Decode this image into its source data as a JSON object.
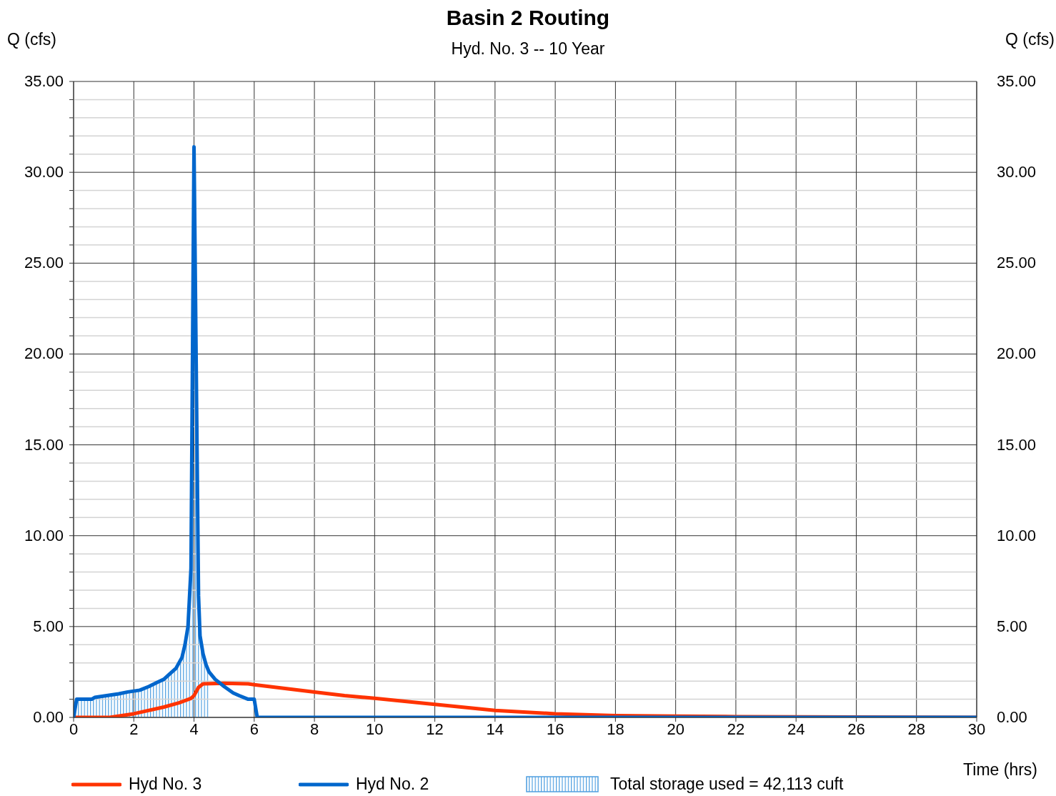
{
  "chart_data": {
    "type": "line",
    "title": "Basin 2 Routing",
    "subtitle": "Hyd. No. 3 -- 10 Year",
    "xlabel": "Time (hrs)",
    "ylabel": "Q (cfs)",
    "y2label": "Q (cfs)",
    "xlim": [
      0,
      30
    ],
    "xticks": [
      0,
      2,
      4,
      6,
      8,
      10,
      12,
      14,
      16,
      18,
      20,
      22,
      24,
      26,
      28,
      30
    ],
    "ylim": [
      0,
      35
    ],
    "yticks": [
      {
        "value": 0,
        "label": "0.00"
      },
      {
        "value": 1,
        "label": null
      },
      {
        "value": 2,
        "label": null
      },
      {
        "value": 3,
        "label": null
      },
      {
        "value": 4,
        "label": null
      },
      {
        "value": 5,
        "label": "5.00"
      },
      {
        "value": 6,
        "label": null
      },
      {
        "value": 7,
        "label": null
      },
      {
        "value": 8,
        "label": null
      },
      {
        "value": 9,
        "label": null
      },
      {
        "value": 10,
        "label": "10.00"
      },
      {
        "value": 11,
        "label": null
      },
      {
        "value": 12,
        "label": null
      },
      {
        "value": 13,
        "label": null
      },
      {
        "value": 14,
        "label": null
      },
      {
        "value": 15,
        "label": "15.00"
      },
      {
        "value": 16,
        "label": null
      },
      {
        "value": 17,
        "label": null
      },
      {
        "value": 18,
        "label": null
      },
      {
        "value": 19,
        "label": null
      },
      {
        "value": 20,
        "label": "20.00"
      },
      {
        "value": 21,
        "label": null
      },
      {
        "value": 22,
        "label": null
      },
      {
        "value": 23,
        "label": null
      },
      {
        "value": 24,
        "label": null
      },
      {
        "value": 25,
        "label": "25.00"
      },
      {
        "value": 26,
        "label": null
      },
      {
        "value": 27,
        "label": null
      },
      {
        "value": 28,
        "label": null
      },
      {
        "value": 29,
        "label": null
      },
      {
        "value": 30,
        "label": "30.00"
      },
      {
        "value": 31,
        "label": null
      },
      {
        "value": 32,
        "label": null
      },
      {
        "value": 33,
        "label": null
      },
      {
        "value": 34,
        "label": null
      },
      {
        "value": 35,
        "label": "35.00"
      }
    ],
    "y2lim": [
      0,
      35
    ],
    "y2ticks": [
      {
        "value": 0,
        "label": "0.00"
      },
      {
        "value": 5,
        "label": "5.00"
      },
      {
        "value": 10,
        "label": "10.00"
      },
      {
        "value": 15,
        "label": "15.00"
      },
      {
        "value": 20,
        "label": "20.00"
      },
      {
        "value": 25,
        "label": "25.00"
      },
      {
        "value": 30,
        "label": "30.00"
      },
      {
        "value": 35,
        "label": "35.00"
      }
    ],
    "grid": true,
    "legend": "bottom",
    "marker": "none",
    "line_style": "solid",
    "series": [
      {
        "name": "Hyd No. 3",
        "color": "#ff3300",
        "x": [
          0,
          1.2,
          2,
          3,
          3.5,
          3.9,
          4.0,
          4.15,
          4.3,
          5,
          5.8,
          6,
          8,
          9,
          10,
          12,
          14,
          16,
          18,
          20,
          22,
          24,
          30
        ],
        "values": [
          0,
          0,
          0.2,
          0.57,
          0.8,
          1.05,
          1.2,
          1.65,
          1.85,
          1.88,
          1.85,
          1.8,
          1.4,
          1.2,
          1.05,
          0.72,
          0.38,
          0.2,
          0.1,
          0.07,
          0.04,
          0.03,
          0
        ]
      },
      {
        "name": "Hyd No. 2",
        "color": "#0066cc",
        "x": [
          0,
          0.1,
          0.6,
          0.7,
          1.1,
          1.5,
          1.8,
          2.2,
          2.5,
          2.8,
          3.0,
          3.2,
          3.4,
          3.6,
          3.7,
          3.8,
          3.9,
          4.0,
          4.15,
          4.2,
          4.3,
          4.4,
          4.5,
          4.7,
          5.0,
          5.3,
          5.5,
          5.8,
          6.0,
          6.1,
          30
        ],
        "values": [
          0,
          1.0,
          1.0,
          1.1,
          1.2,
          1.3,
          1.4,
          1.5,
          1.7,
          1.95,
          2.1,
          2.4,
          2.7,
          3.3,
          4.0,
          5.0,
          8.2,
          31.4,
          6.7,
          4.5,
          3.5,
          2.9,
          2.5,
          2.1,
          1.7,
          1.35,
          1.2,
          1.0,
          1.0,
          0,
          0
        ]
      },
      {
        "name": "Total storage used = 42,113 cuft",
        "type": "area",
        "color": "#4f9fe0",
        "x": [
          0,
          0.1,
          0.6,
          0.7,
          1.1,
          1.5,
          1.8,
          2.2,
          2.5,
          2.8,
          3.0,
          3.2,
          3.4,
          3.6,
          3.7,
          3.8,
          3.9,
          4.0,
          4.15,
          4.2,
          4.3,
          4.4,
          4.5
        ],
        "values": [
          0,
          1.0,
          1.0,
          1.1,
          1.2,
          1.3,
          1.4,
          1.5,
          1.7,
          1.95,
          2.1,
          2.4,
          2.7,
          3.3,
          4.0,
          5.0,
          8.2,
          31.4,
          6.7,
          4.5,
          3.5,
          2.9,
          2.5
        ]
      }
    ]
  }
}
